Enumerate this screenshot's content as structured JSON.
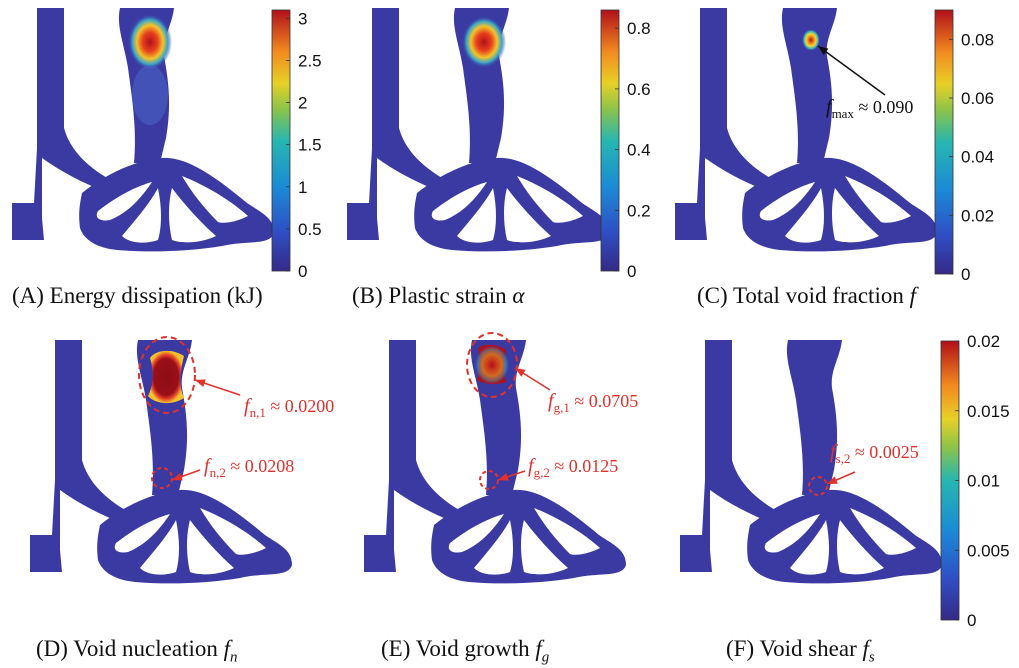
{
  "colors": {
    "body": "#3b3aa3",
    "body_dark": "#2f2e96",
    "annotation_red": "#e0312b",
    "hot_red": "#b0101a"
  },
  "panels": [
    {
      "id": "A",
      "caption_prefix": "(A) Energy dissipation (kJ)",
      "caption_var": "",
      "caption_sub": "",
      "colorbar": {
        "ticks": [
          "3",
          "2.5",
          "2",
          "1.5",
          "1",
          "0.5",
          "0"
        ],
        "max": 3.1,
        "min": 0
      }
    },
    {
      "id": "B",
      "caption_prefix": "(B) Plastic strain",
      "caption_var": "α",
      "caption_sub": "",
      "colorbar": {
        "ticks": [
          "0.8",
          "0.6",
          "0.4",
          "0.2",
          "0"
        ],
        "max": 0.86,
        "min": 0
      }
    },
    {
      "id": "C",
      "caption_prefix": "(C) Total void fraction",
      "caption_var": "f",
      "caption_sub": "",
      "colorbar": {
        "ticks": [
          "0.08",
          "0.06",
          "0.04",
          "0.02",
          "0"
        ],
        "max": 0.09,
        "min": 0
      },
      "annotation": {
        "var": "f",
        "sub": "max",
        "text": " ≈ 0.090"
      }
    },
    {
      "id": "D",
      "caption_prefix": "(D) Void nucleation",
      "caption_var": "f",
      "caption_sub": "n",
      "annotations": [
        {
          "var": "f",
          "sub": "n,1",
          "text": " ≈ 0.0200"
        },
        {
          "var": "f",
          "sub": "n,2",
          "text": " ≈ 0.0208"
        }
      ]
    },
    {
      "id": "E",
      "caption_prefix": "(E) Void growth",
      "caption_var": "f",
      "caption_sub": "g",
      "annotations": [
        {
          "var": "f",
          "sub": "g,1",
          "text": " ≈ 0.0705"
        },
        {
          "var": "f",
          "sub": "g,2",
          "text": " ≈ 0.0125"
        }
      ]
    },
    {
      "id": "F",
      "caption_prefix": "(F) Void shear",
      "caption_var": "f",
      "caption_sub": "s",
      "colorbar": {
        "ticks": [
          "0.02",
          "0.015",
          "0.01",
          "0.005",
          "0"
        ],
        "max": 0.02,
        "min": 0
      },
      "annotation": {
        "var": "f",
        "sub": "s,2",
        "text": " ≈ 0.0025"
      }
    }
  ]
}
